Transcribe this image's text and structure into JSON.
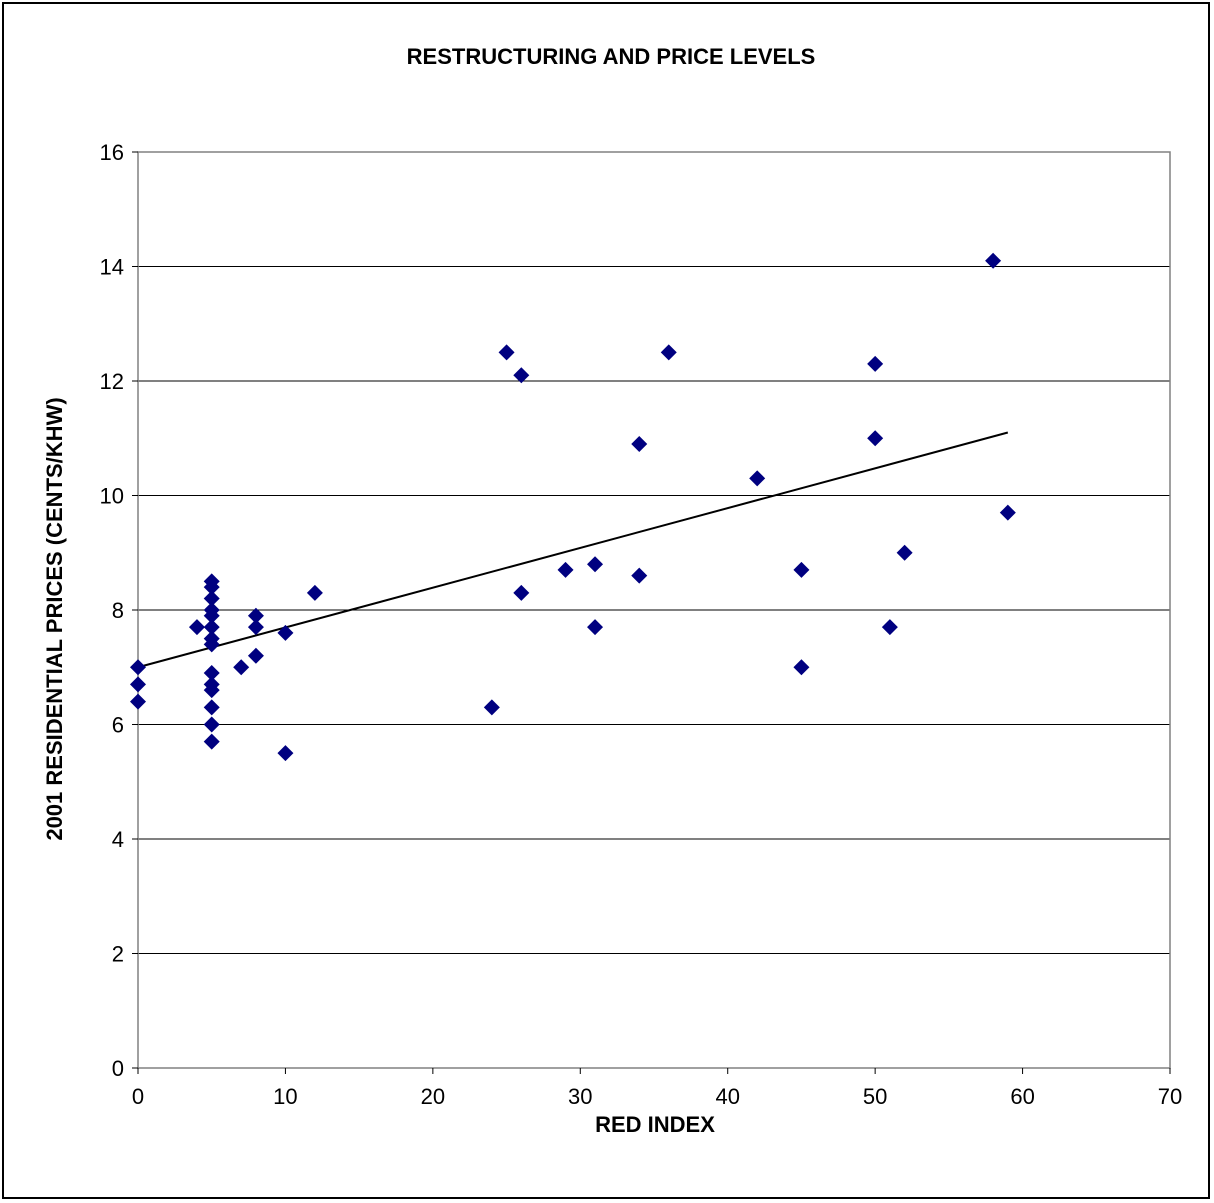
{
  "chart_data": {
    "type": "scatter",
    "title": "RESTRUCTURING AND PRICE LEVELS",
    "xlabel": "RED INDEX",
    "ylabel": "2001 RESIDENTIAL PRICES (CENTS/KHW)",
    "xlim": [
      0,
      70
    ],
    "ylim": [
      0,
      16
    ],
    "xticks": [
      "0",
      "10",
      "20",
      "30",
      "40",
      "50",
      "60",
      "70"
    ],
    "yticks": [
      "0",
      "2",
      "4",
      "6",
      "8",
      "10",
      "12",
      "14",
      "16"
    ],
    "grid": "horizontal",
    "legend": "none",
    "marker": "diamond",
    "marker_color": "#000080",
    "points": [
      [
        0,
        7.0
      ],
      [
        0,
        6.7
      ],
      [
        0,
        6.4
      ],
      [
        4,
        7.7
      ],
      [
        5,
        8.5
      ],
      [
        5,
        8.4
      ],
      [
        5,
        8.2
      ],
      [
        5,
        8.0
      ],
      [
        5,
        7.9
      ],
      [
        5,
        7.7
      ],
      [
        5,
        7.5
      ],
      [
        5,
        7.4
      ],
      [
        5,
        6.9
      ],
      [
        5,
        6.7
      ],
      [
        5,
        6.6
      ],
      [
        5,
        6.3
      ],
      [
        5,
        6.0
      ],
      [
        5,
        5.7
      ],
      [
        7,
        7.0
      ],
      [
        8,
        7.9
      ],
      [
        8,
        7.7
      ],
      [
        8,
        7.2
      ],
      [
        10,
        7.6
      ],
      [
        10,
        5.5
      ],
      [
        12,
        8.3
      ],
      [
        24,
        6.3
      ],
      [
        25,
        12.5
      ],
      [
        26,
        12.1
      ],
      [
        26,
        8.3
      ],
      [
        29,
        8.7
      ],
      [
        31,
        8.8
      ],
      [
        31,
        7.7
      ],
      [
        34,
        10.9
      ],
      [
        34,
        8.6
      ],
      [
        36,
        12.5
      ],
      [
        42,
        10.3
      ],
      [
        45,
        8.7
      ],
      [
        45,
        7.0
      ],
      [
        50,
        12.3
      ],
      [
        50,
        11.0
      ],
      [
        51,
        7.7
      ],
      [
        52,
        9.0
      ],
      [
        58,
        14.1
      ],
      [
        59,
        9.7
      ]
    ],
    "trendline": {
      "type": "linear",
      "x": [
        0,
        59
      ],
      "y": [
        7.0,
        11.1
      ],
      "color": "#000000"
    }
  }
}
